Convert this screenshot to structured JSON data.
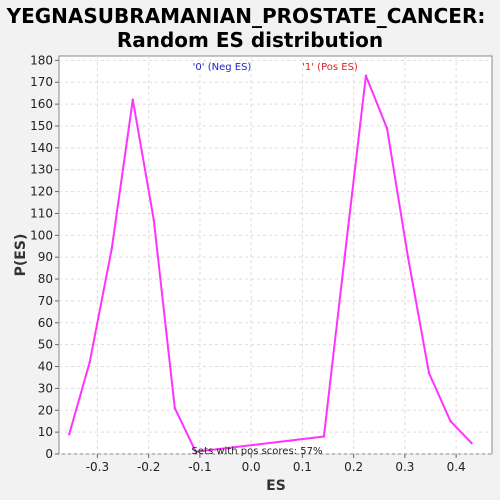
{
  "chart_data": {
    "type": "line",
    "title_lines": [
      "YEGNASUBRAMANIAN_PROSTATE_CANCER:",
      "Random ES distribution"
    ],
    "xlabel": "ES",
    "ylabel": "P(ES)",
    "xlim": [
      -0.375,
      0.47
    ],
    "ylim": [
      0,
      182
    ],
    "xticks": [
      -0.3,
      -0.2,
      -0.1,
      0.0,
      0.1,
      0.2,
      0.3,
      0.4
    ],
    "xtick_labels": [
      "-0.3",
      "-0.2",
      "-0.1",
      "0.0",
      "0.1",
      "0.2",
      "0.3",
      "0.4"
    ],
    "yticks": [
      0,
      10,
      20,
      30,
      40,
      50,
      60,
      70,
      80,
      90,
      100,
      110,
      120,
      130,
      140,
      150,
      160,
      170,
      180
    ],
    "ytick_labels": [
      "0",
      "10",
      "20",
      "30",
      "40",
      "50",
      "60",
      "70",
      "80",
      "90",
      "100",
      "110",
      "120",
      "130",
      "140",
      "150",
      "160",
      "170",
      "180"
    ],
    "grid": true,
    "series": [
      {
        "name": "Random ES",
        "color": "#ff33ff",
        "x": [
          -0.355,
          -0.315,
          -0.272,
          -0.231,
          -0.19,
          -0.149,
          -0.108,
          0.142,
          0.183,
          0.224,
          0.265,
          0.306,
          0.347,
          0.389,
          0.43
        ],
        "y": [
          9,
          42,
          94,
          162,
          107,
          21,
          1,
          8,
          91,
          173,
          149,
          90,
          37,
          15,
          5
        ]
      }
    ],
    "legend": [
      {
        "label": "'0' (Neg ES)",
        "color": "#2222cc"
      },
      {
        "label": "'1' (Pos ES)",
        "color": "#dd2222"
      }
    ],
    "annotation": "Sets with pos scores: 57%"
  }
}
